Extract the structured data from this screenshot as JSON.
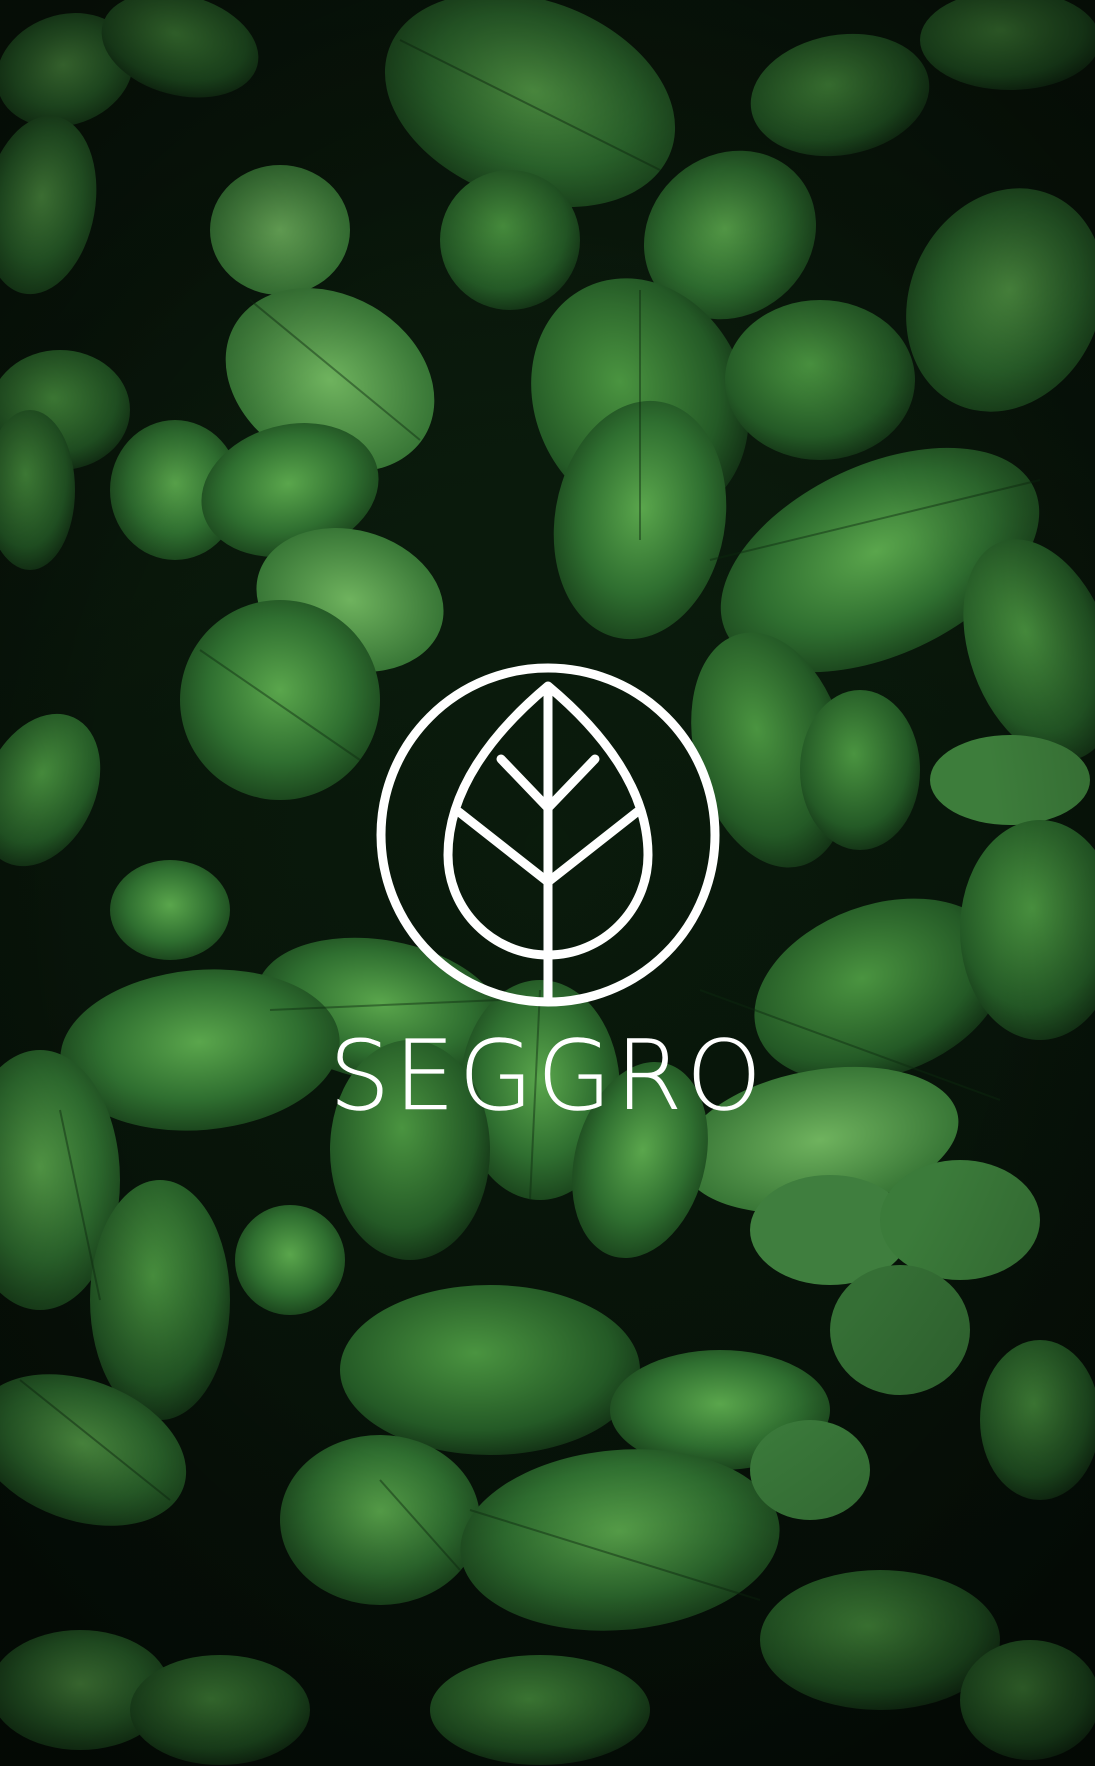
{
  "brand": {
    "name": "SEGGRO",
    "logo_icon": "leaf-in-circle-icon"
  },
  "colors": {
    "logo": "#ffffff",
    "leaf_dark": "#1f4a23",
    "leaf_mid": "#2f6b32",
    "leaf_light": "#4f9a45",
    "background": "#0a1b0c"
  }
}
